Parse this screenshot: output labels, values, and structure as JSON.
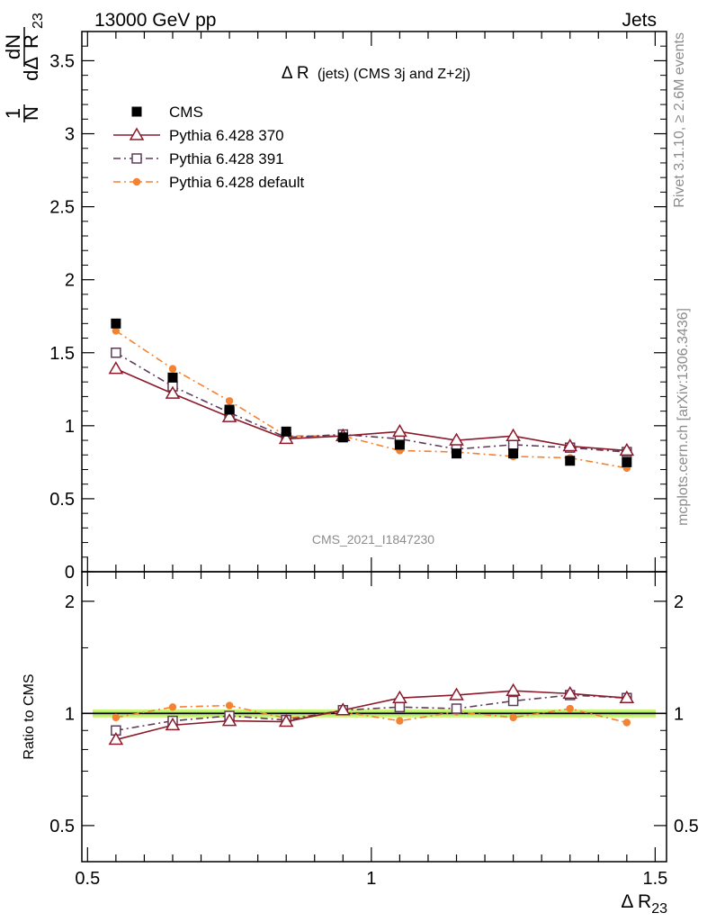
{
  "header": {
    "left": "13000 GeV pp",
    "right": "Jets"
  },
  "side_labels": {
    "rivet": "Rivet 3.1.10, ≥ 2.6M events",
    "mcplots": "mcplots.cern.ch [arXiv:1306.3436]"
  },
  "chart_data": [
    {
      "type": "scatter",
      "title": "Δ R (jets) (CMS 3j and Z+2j)",
      "title_main": "Δ R",
      "title_sub": "(jets) (CMS 3j and Z+2j)",
      "watermark": "CMS_2021_I1847230",
      "ylabel": "1/N dN/dΔ R23",
      "ylabel_parts": {
        "one": "1",
        "N": "N",
        "dN": "dN",
        "dDelta": "dΔ",
        "R": "R",
        "sub": "23"
      },
      "xlim": [
        0.49,
        1.52
      ],
      "ylim": [
        0,
        3.7
      ],
      "yticks": [
        0,
        0.5,
        1,
        1.5,
        2,
        2.5,
        3,
        3.5
      ],
      "ytick_labels": [
        "0",
        "0.5",
        "1",
        "1.5",
        "2",
        "2.5",
        "3",
        "3.5"
      ],
      "legend_position": "top-left",
      "x": [
        0.55,
        0.65,
        0.75,
        0.85,
        0.95,
        1.05,
        1.15,
        1.25,
        1.35,
        1.45
      ],
      "series": [
        {
          "name": "CMS",
          "color": "#000000",
          "marker": "filled-square",
          "line": "none",
          "values": [
            1.7,
            1.33,
            1.11,
            0.96,
            0.92,
            0.87,
            0.81,
            0.81,
            0.76,
            0.75
          ]
        },
        {
          "name": "Pythia 6.428 370",
          "color": "#8b1a2b",
          "marker": "open-triangle",
          "line": "solid",
          "values": [
            1.39,
            1.22,
            1.06,
            0.91,
            0.93,
            0.96,
            0.9,
            0.93,
            0.86,
            0.83
          ]
        },
        {
          "name": "Pythia 6.428 391",
          "color": "#5e3c58",
          "marker": "open-square",
          "line": "dash-dot",
          "values": [
            1.5,
            1.27,
            1.09,
            0.92,
            0.94,
            0.91,
            0.84,
            0.87,
            0.85,
            0.82
          ]
        },
        {
          "name": "Pythia 6.428 default",
          "color": "#f58231",
          "marker": "filled-circle",
          "line": "dash-dot",
          "values": [
            1.65,
            1.39,
            1.17,
            0.93,
            0.93,
            0.83,
            0.82,
            0.79,
            0.78,
            0.71
          ]
        }
      ]
    },
    {
      "type": "scatter",
      "ylabel": "Ratio to CMS",
      "xlabel": "Δ R23",
      "xlabel_parts": {
        "main": "Δ R",
        "sub": "23"
      },
      "xlim": [
        0.49,
        1.52
      ],
      "ylim": [
        0.4,
        2.4
      ],
      "log_y": true,
      "xticks": [
        0.5,
        1,
        1.5
      ],
      "xtick_labels": [
        "0.5",
        "1",
        "1.5"
      ],
      "yticks": [
        0.5,
        1,
        2
      ],
      "ytick_labels": [
        "0.5",
        "1",
        "2"
      ],
      "x": [
        0.55,
        0.65,
        0.75,
        0.85,
        0.95,
        1.05,
        1.15,
        1.25,
        1.35,
        1.45
      ],
      "series": [
        {
          "name": "Pythia 6.428 370",
          "color": "#8b1a2b",
          "marker": "open-triangle",
          "line": "solid",
          "values": [
            0.85,
            0.93,
            0.955,
            0.95,
            1.02,
            1.1,
            1.12,
            1.15,
            1.13,
            1.1
          ]
        },
        {
          "name": "Pythia 6.428 391",
          "color": "#5e3c58",
          "marker": "open-square",
          "line": "dash-dot",
          "values": [
            0.9,
            0.955,
            0.985,
            0.96,
            1.02,
            1.04,
            1.03,
            1.08,
            1.12,
            1.1
          ]
        },
        {
          "name": "Pythia 6.428 default",
          "color": "#f58231",
          "marker": "filled-circle",
          "line": "dash-dot",
          "values": [
            0.975,
            1.04,
            1.05,
            0.97,
            1.01,
            0.955,
            1.01,
            0.975,
            1.03,
            0.945
          ]
        }
      ],
      "band": {
        "color": "#ccf27a",
        "inner_color": "#a8e66b"
      }
    }
  ]
}
